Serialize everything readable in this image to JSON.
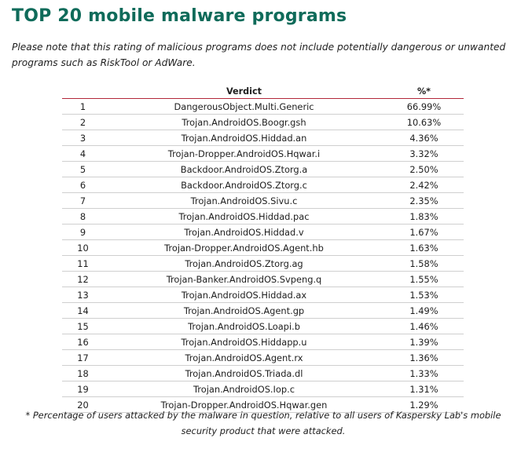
{
  "title": "TOP 20 mobile malware programs",
  "note": "Please note that this rating of malicious programs does not include potentially dangerous or unwanted programs such as RiskTool or AdWare.",
  "table": {
    "columns": [
      "",
      "Verdict",
      "%*"
    ],
    "rows": [
      {
        "rank": "1",
        "verdict": "DangerousObject.Multi.Generic",
        "percent": "66.99%"
      },
      {
        "rank": "2",
        "verdict": "Trojan.AndroidOS.Boogr.gsh",
        "percent": "10.63%"
      },
      {
        "rank": "3",
        "verdict": "Trojan.AndroidOS.Hiddad.an",
        "percent": "4.36%"
      },
      {
        "rank": "4",
        "verdict": "Trojan-Dropper.AndroidOS.Hqwar.i",
        "percent": "3.32%"
      },
      {
        "rank": "5",
        "verdict": "Backdoor.AndroidOS.Ztorg.a",
        "percent": "2.50%"
      },
      {
        "rank": "6",
        "verdict": "Backdoor.AndroidOS.Ztorg.c",
        "percent": "2.42%"
      },
      {
        "rank": "7",
        "verdict": "Trojan.AndroidOS.Sivu.c",
        "percent": "2.35%"
      },
      {
        "rank": "8",
        "verdict": "Trojan.AndroidOS.Hiddad.pac",
        "percent": "1.83%"
      },
      {
        "rank": "9",
        "verdict": "Trojan.AndroidOS.Hiddad.v",
        "percent": "1.67%"
      },
      {
        "rank": "10",
        "verdict": "Trojan-Dropper.AndroidOS.Agent.hb",
        "percent": "1.63%"
      },
      {
        "rank": "11",
        "verdict": "Trojan.AndroidOS.Ztorg.ag",
        "percent": "1.58%"
      },
      {
        "rank": "12",
        "verdict": "Trojan-Banker.AndroidOS.Svpeng.q",
        "percent": "1.55%"
      },
      {
        "rank": "13",
        "verdict": "Trojan.AndroidOS.Hiddad.ax",
        "percent": "1.53%"
      },
      {
        "rank": "14",
        "verdict": "Trojan.AndroidOS.Agent.gp",
        "percent": "1.49%"
      },
      {
        "rank": "15",
        "verdict": "Trojan.AndroidOS.Loapi.b",
        "percent": "1.46%"
      },
      {
        "rank": "16",
        "verdict": "Trojan.AndroidOS.Hiddapp.u",
        "percent": "1.39%"
      },
      {
        "rank": "17",
        "verdict": "Trojan.AndroidOS.Agent.rx",
        "percent": "1.36%"
      },
      {
        "rank": "18",
        "verdict": "Trojan.AndroidOS.Triada.dl",
        "percent": "1.33%"
      },
      {
        "rank": "19",
        "verdict": "Trojan.AndroidOS.Iop.c",
        "percent": "1.31%"
      },
      {
        "rank": "20",
        "verdict": "Trojan-Dropper.AndroidOS.Hqwar.gen",
        "percent": "1.29%"
      }
    ]
  },
  "footnote": "* Percentage of users attacked by the malware in question, relative to all users of Kaspersky Lab's mobile security product that were attacked."
}
